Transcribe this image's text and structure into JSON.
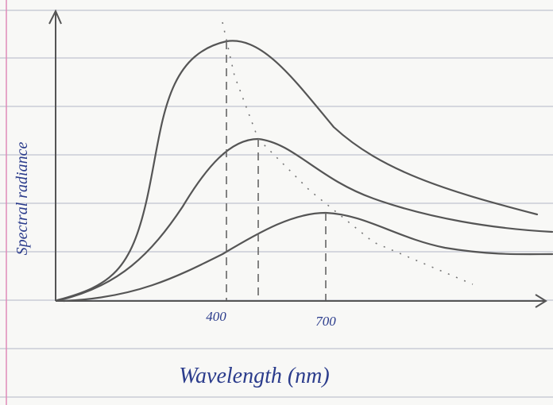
{
  "axes": {
    "y_label": "Spectral radiance",
    "x_label": "Wavelength (nm)",
    "x_ticks": [
      "400",
      "700"
    ]
  }
}
